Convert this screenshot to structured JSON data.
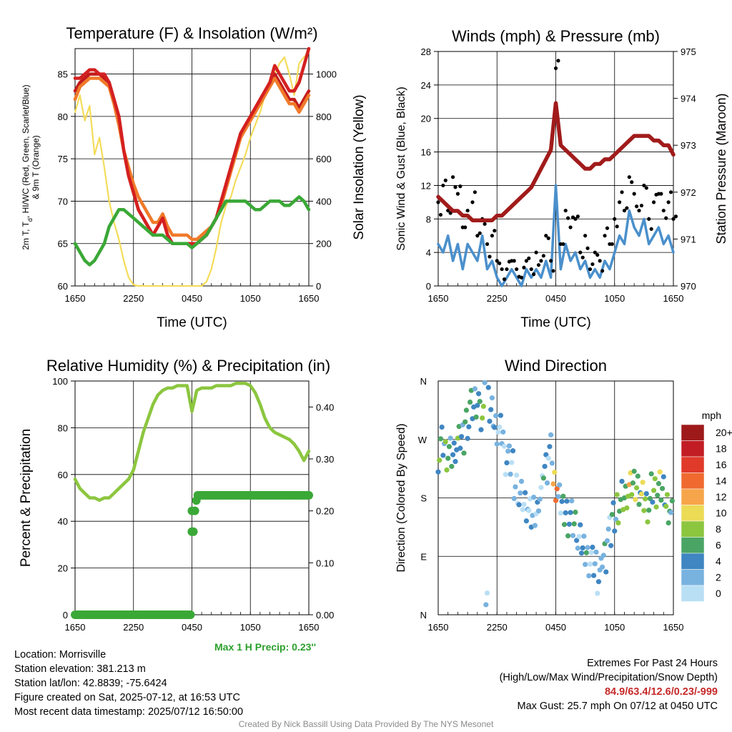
{
  "colors": {
    "t2m": "#c21b1b",
    "td": "#3aa836",
    "wc": "#d42020",
    "t9m": "#f07a2a",
    "solar": "#f4dc5a",
    "rh": "#8cc63f",
    "precip": "#3aa836",
    "sonic": "#4a90cc",
    "gust": "#000000",
    "pressure": "#a11b1b"
  },
  "chart_data": [
    {
      "type": "line",
      "title": "Temperature (F) & Insolation (W/m²)",
      "xlabel": "Time (UTC)",
      "ylabel": "2m T, Td, HI/WC (Red, Green, Scarlet/Blue) & 9m T (Orange)",
      "ylabel_line1": "2m T, T",
      "ylabel_sub": "d",
      "ylabel_line1_rest": ", HI/WC (Red, Green, Scarlet/Blue)",
      "ylabel_line2": "& 9m T (Orange)",
      "y2label": "Solar Insolation (Yellow)",
      "x_ticks": [
        "1650",
        "2250",
        "0450",
        "1050",
        "1650"
      ],
      "ylim": [
        60,
        88
      ],
      "y_ticks": [
        60,
        65,
        70,
        75,
        80,
        85
      ],
      "y2lim": [
        0,
        1120
      ],
      "y2_ticks": [
        0,
        200,
        400,
        600,
        800,
        1000
      ],
      "grid": true,
      "series": [
        {
          "key": "t2m",
          "x": [
            0,
            0.5,
            1,
            1.5,
            2,
            2.5,
            3,
            3.5,
            4,
            4.5,
            5,
            5.5,
            6,
            6.5,
            7,
            7.5,
            8,
            8.5,
            9,
            9.5,
            10,
            10.5,
            11,
            11.5,
            12,
            12.5,
            13,
            13.5,
            14,
            14.5,
            15,
            15.5,
            16,
            16.5,
            17,
            17.5,
            18,
            18.5,
            19,
            19.5,
            20,
            20.5,
            21,
            21.5,
            22,
            22.5,
            23,
            23.5,
            24
          ],
          "y": [
            83,
            84,
            84.5,
            85,
            85,
            85,
            84.5,
            84,
            82,
            80,
            76,
            73,
            71,
            69,
            68,
            67,
            66,
            67,
            68,
            66,
            65,
            65,
            65,
            65,
            65,
            65,
            65.5,
            66,
            67,
            68,
            70,
            72,
            74,
            76,
            78,
            79,
            80,
            81,
            82,
            83,
            84,
            85,
            84,
            83,
            82,
            82,
            81,
            82,
            83
          ]
        },
        {
          "key": "t9m",
          "x": [
            0,
            0.5,
            1,
            1.5,
            2,
            2.5,
            3,
            3.5,
            4,
            4.5,
            5,
            5.5,
            6,
            6.5,
            7,
            7.5,
            8,
            8.5,
            9,
            9.5,
            10,
            10.5,
            11,
            11.5,
            12,
            12.5,
            13,
            13.5,
            14,
            14.5,
            15,
            15.5,
            16,
            16.5,
            17,
            17.5,
            18,
            18.5,
            19,
            19.5,
            20,
            20.5,
            21,
            21.5,
            22,
            22.5,
            23,
            23.5,
            24
          ],
          "y": [
            82,
            83.5,
            84,
            84.5,
            84.5,
            84.5,
            84,
            83.5,
            81.5,
            79,
            76,
            74,
            72,
            70.5,
            69.5,
            68.5,
            67.5,
            67.5,
            68.5,
            67,
            66,
            66,
            66,
            66,
            65.5,
            65.5,
            66,
            66.5,
            67,
            68,
            69.5,
            71.5,
            73.5,
            75.5,
            77.5,
            78.5,
            79.5,
            80.5,
            81.5,
            82.5,
            83.5,
            84.5,
            83.5,
            82.5,
            81.5,
            81.5,
            80.5,
            81.5,
            82.5
          ]
        },
        {
          "key": "wc",
          "x": [
            0,
            0.5,
            1,
            1.5,
            2,
            2.5,
            3,
            3.5,
            4,
            4.5,
            5,
            5.5,
            6,
            6.5,
            7,
            7.5,
            8,
            8.5,
            9,
            9.5,
            10,
            10.5,
            11,
            11.5,
            12,
            12.5,
            13,
            13.5,
            14,
            14.5,
            15,
            15.5,
            16,
            16.5,
            17,
            17.5,
            18,
            18.5,
            19,
            19.5,
            20,
            20.5,
            21,
            21.5,
            22,
            22.5,
            23,
            23.5,
            24
          ],
          "y": [
            84.5,
            84.5,
            85,
            85.5,
            85.5,
            85,
            85,
            84,
            82,
            80,
            76,
            73,
            71,
            69,
            68,
            67,
            66,
            67,
            68,
            66,
            65,
            65,
            65,
            65,
            65,
            65,
            65.5,
            66,
            67,
            68,
            70,
            72,
            74,
            76,
            78,
            79,
            80,
            81,
            82,
            83,
            84,
            86,
            85,
            84,
            83,
            83,
            84,
            86,
            88
          ]
        },
        {
          "key": "td",
          "x": [
            0,
            0.5,
            1,
            1.5,
            2,
            2.5,
            3,
            3.5,
            4,
            4.5,
            5,
            5.5,
            6,
            6.5,
            7,
            7.5,
            8,
            8.5,
            9,
            9.5,
            10,
            10.5,
            11,
            11.5,
            12,
            12.5,
            13,
            13.5,
            14,
            14.5,
            15,
            15.5,
            16,
            16.5,
            17,
            17.5,
            18,
            18.5,
            19,
            19.5,
            20,
            20.5,
            21,
            21.5,
            22,
            22.5,
            23,
            23.5,
            24
          ],
          "y": [
            65,
            64,
            63,
            62.5,
            63,
            64,
            65,
            67,
            68,
            69,
            69,
            68.5,
            68,
            67.5,
            67,
            66.5,
            66,
            66,
            66,
            65.5,
            65,
            65,
            65,
            65,
            64.5,
            65,
            65.5,
            66,
            67,
            68,
            69,
            70,
            70,
            70,
            70,
            70,
            69.5,
            69,
            69,
            69.5,
            70,
            70,
            70,
            69.5,
            69.5,
            70,
            70.5,
            70,
            69
          ]
        },
        {
          "key": "solar",
          "axis": "y2",
          "x": [
            0,
            0.5,
            1,
            1.5,
            2,
            2.5,
            3,
            3.5,
            4,
            4.5,
            5,
            5.5,
            6,
            6.5,
            7,
            7.5,
            8,
            8.5,
            9,
            9.5,
            10,
            10.5,
            11,
            11.5,
            12,
            12.5,
            13,
            13.5,
            14,
            14.5,
            15,
            15.5,
            16,
            16.5,
            17,
            17.5,
            18,
            18.5,
            19,
            19.5,
            20,
            20.5,
            21,
            21.5,
            22,
            22.5,
            23,
            23.5,
            24
          ],
          "y": [
            820,
            900,
            780,
            850,
            620,
            700,
            560,
            400,
            300,
            220,
            120,
            40,
            5,
            0,
            0,
            0,
            0,
            0,
            0,
            0,
            0,
            0,
            0,
            0,
            0,
            0,
            0,
            20,
            80,
            180,
            300,
            380,
            420,
            500,
            560,
            620,
            700,
            760,
            820,
            900,
            960,
            1000,
            1050,
            1080,
            1000,
            900,
            1050,
            1080,
            1100
          ]
        }
      ]
    },
    {
      "type": "line",
      "title": "Winds (mph) & Pressure (mb)",
      "xlabel": "Time (UTC)",
      "ylabel": "Sonic Wind & Gust (Blue, Black)",
      "y2label": "Station Pressure (Maroon)",
      "x_ticks": [
        "1650",
        "2250",
        "0450",
        "1050",
        "1650"
      ],
      "ylim": [
        0,
        28
      ],
      "y_ticks": [
        0,
        4,
        8,
        12,
        16,
        20,
        24,
        28
      ],
      "y2lim": [
        970,
        975
      ],
      "y2_ticks": [
        970,
        971,
        972,
        973,
        974,
        975
      ],
      "grid": true,
      "series": [
        {
          "key": "sonic",
          "x": [
            0,
            0.5,
            1,
            1.5,
            2,
            2.5,
            3,
            3.5,
            4,
            4.5,
            5,
            5.5,
            6,
            6.5,
            7,
            7.5,
            8,
            8.5,
            9,
            9.5,
            10,
            10.5,
            11,
            11.5,
            12,
            12.5,
            13,
            13.5,
            14,
            14.5,
            15,
            15.5,
            16,
            16.5,
            17,
            17.5,
            18,
            18.5,
            19,
            19.5,
            20,
            20.5,
            21,
            21.5,
            22,
            22.5,
            23,
            23.5,
            24
          ],
          "y": [
            5,
            4,
            6,
            3,
            5,
            2,
            5,
            4,
            3,
            6,
            2,
            3,
            1,
            0,
            1,
            2,
            1,
            0,
            2,
            1,
            2,
            1,
            3,
            1,
            12,
            2,
            5,
            3,
            4,
            2,
            3,
            1,
            2,
            1,
            3,
            2,
            4,
            6,
            5,
            9,
            7,
            6,
            8,
            5,
            6,
            7,
            5,
            6,
            4
          ]
        },
        {
          "key": "gust",
          "x": [
            0,
            0.5,
            1,
            1.5,
            2,
            2.5,
            3,
            3.5,
            4,
            4.5,
            5,
            5.5,
            6,
            6.5,
            7,
            7.5,
            8,
            8.5,
            9,
            9.5,
            10,
            10.5,
            11,
            11.5,
            12,
            12.5,
            13,
            13.5,
            14,
            14.5,
            15,
            15.5,
            16,
            16.5,
            17,
            17.5,
            18,
            18.5,
            19,
            19.5,
            20,
            20.5,
            21,
            21.5,
            22,
            22.5,
            23,
            23.5,
            24
          ],
          "y": [
            10,
            12,
            9,
            13,
            11,
            7,
            9,
            10,
            6,
            8,
            5,
            6,
            3,
            2,
            2,
            3,
            2,
            1,
            3,
            2,
            4,
            3,
            6,
            3,
            26,
            5,
            9,
            7,
            8,
            4,
            6,
            2,
            4,
            3,
            6,
            5,
            8,
            10,
            9,
            13,
            11,
            9,
            12,
            8,
            10,
            11,
            9,
            10,
            8
          ]
        },
        {
          "key": "pressure",
          "axis": "y2",
          "x": [
            0,
            0.5,
            1,
            1.5,
            2,
            2.5,
            3,
            3.5,
            4,
            4.5,
            5,
            5.5,
            6,
            6.5,
            7,
            7.5,
            8,
            8.5,
            9,
            9.5,
            10,
            10.5,
            11,
            11.5,
            12,
            12.5,
            13,
            13.5,
            14,
            14.5,
            15,
            15.5,
            16,
            16.5,
            17,
            17.5,
            18,
            18.5,
            19,
            19.5,
            20,
            20.5,
            21,
            21.5,
            22,
            22.5,
            23,
            23.5,
            24
          ],
          "y": [
            971.9,
            971.8,
            971.7,
            971.6,
            971.6,
            971.5,
            971.5,
            971.4,
            971.4,
            971.4,
            971.4,
            971.4,
            971.5,
            971.5,
            971.6,
            971.7,
            971.8,
            971.9,
            972.0,
            972.1,
            972.3,
            972.5,
            972.7,
            972.9,
            973.9,
            973.0,
            972.9,
            972.8,
            972.7,
            972.6,
            972.5,
            972.5,
            972.6,
            972.6,
            972.7,
            972.7,
            972.8,
            972.9,
            973.0,
            973.1,
            973.2,
            973.2,
            973.2,
            973.2,
            973.1,
            973.1,
            973.0,
            973.0,
            972.8
          ]
        }
      ]
    },
    {
      "type": "line",
      "title": "Relative Humidity (%) & Precipitation (in)",
      "xlabel": "",
      "ylabel": "Percent & Precipitation",
      "x_ticks": [
        "1650",
        "2250",
        "0450",
        "1050",
        "1650"
      ],
      "ylim": [
        0,
        100
      ],
      "y_ticks": [
        0,
        20,
        40,
        60,
        80,
        100
      ],
      "y2lim": [
        0,
        0.45
      ],
      "y2_ticks": [
        "0.00",
        "0.10",
        "0.20",
        "0.30",
        "0.40"
      ],
      "grid": true,
      "series": [
        {
          "key": "rh",
          "x": [
            0,
            0.5,
            1,
            1.5,
            2,
            2.5,
            3,
            3.5,
            4,
            4.5,
            5,
            5.5,
            6,
            6.5,
            7,
            7.5,
            8,
            8.5,
            9,
            9.5,
            10,
            10.5,
            11,
            11.5,
            12,
            12.5,
            13,
            13.5,
            14,
            14.5,
            15,
            15.5,
            16,
            16.5,
            17,
            17.5,
            18,
            18.5,
            19,
            19.5,
            20,
            20.5,
            21,
            21.5,
            22,
            22.5,
            23,
            23.5,
            24
          ],
          "y": [
            58,
            54,
            52,
            50,
            50,
            49,
            50,
            50,
            52,
            54,
            56,
            58,
            62,
            70,
            78,
            84,
            90,
            94,
            96,
            97,
            97,
            98,
            98,
            98,
            87,
            96,
            97,
            97,
            97,
            98,
            98,
            98,
            98,
            99,
            99,
            99,
            98,
            95,
            90,
            84,
            80,
            78,
            77,
            76,
            75,
            73,
            70,
            66,
            70
          ]
        },
        {
          "key": "precip",
          "axis": "y2",
          "step": true,
          "x": [
            0,
            12,
            12,
            12.2,
            12.4,
            12.6,
            24
          ],
          "y": [
            0,
            0,
            0.16,
            0.2,
            0.22,
            0.23,
            0.23
          ]
        }
      ]
    },
    {
      "type": "scatter",
      "title": "Wind Direction",
      "xlabel": "",
      "ylabel": "Direction (Colored By Speed)",
      "x_ticks": [
        "1650",
        "2250",
        "0450",
        "1050",
        "1650"
      ],
      "y_ticks": [
        "N",
        "E",
        "S",
        "W",
        "N"
      ],
      "ylim": [
        0,
        360
      ],
      "grid": true,
      "legend": {
        "title": "mph",
        "labels": [
          "20+",
          "18",
          "16",
          "14",
          "12",
          "10",
          "8",
          "6",
          "4",
          "2",
          "0"
        ],
        "colors": [
          "#9e1a1a",
          "#c21d24",
          "#e03a2a",
          "#f06a30",
          "#f7a54a",
          "#ecdb55",
          "#8cc63f",
          "#4aa564",
          "#3f86c2",
          "#78b2df",
          "#b9dff5"
        ]
      },
      "points_per_hour": 12
    }
  ],
  "info_left": {
    "location": "Location: Morrisville",
    "elevation": "Station elevation: 381.213 m",
    "latlon": "Station lat/lon: 42.8839; -75.6424",
    "created": "Figure created on Sat, 2025-07-12, at 16:53 UTC",
    "recent": "Most recent data timestamp: 2025/07/12 16:50:00"
  },
  "precip_note": "Max 1 H Precip: 0.23''",
  "extremes": {
    "line1": "Extremes For Past 24 Hours",
    "line2": "(High/Low/Max Wind/Precipitation/Snow Depth)",
    "values": "84.9/63.4/12.6/0.23/-999",
    "gust": "Max Gust: 25.7 mph On 07/12 at 0450 UTC"
  },
  "credit": "Created By Nick Bassill Using Data Provided By The NYS Mesonet"
}
